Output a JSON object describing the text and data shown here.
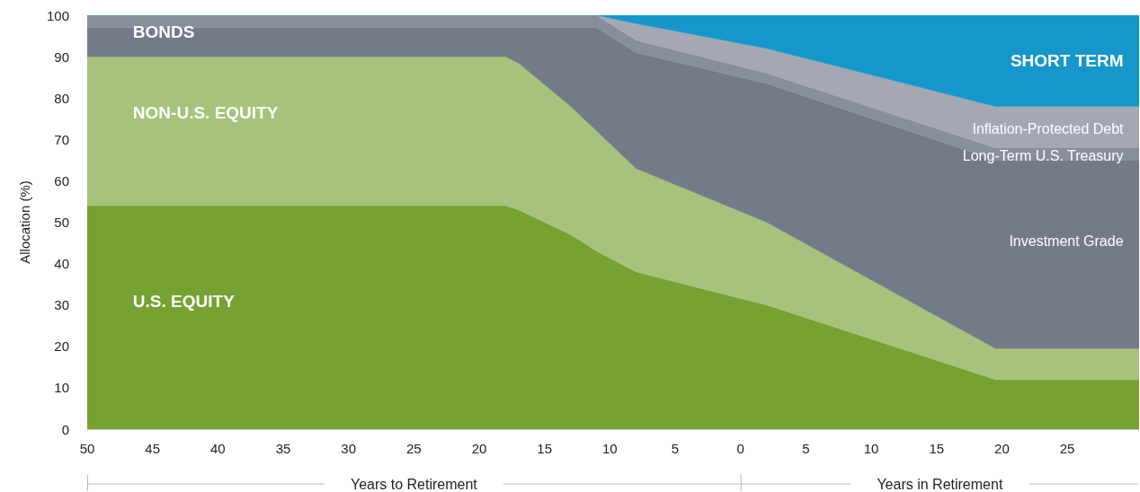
{
  "chart_data": {
    "type": "area",
    "stacked": true,
    "ylabel": "Allocation (%)",
    "x": [
      -50,
      -18,
      -17,
      -13,
      -11,
      -8,
      2,
      19.5,
      30.5
    ],
    "xlim": [
      -50,
      30.5
    ],
    "xticks": [
      {
        "value": -50,
        "label": "50"
      },
      {
        "value": -45,
        "label": "45"
      },
      {
        "value": -40,
        "label": "40"
      },
      {
        "value": -35,
        "label": "35"
      },
      {
        "value": -30,
        "label": "30"
      },
      {
        "value": -25,
        "label": "25"
      },
      {
        "value": -20,
        "label": "20"
      },
      {
        "value": -15,
        "label": "15"
      },
      {
        "value": -10,
        "label": "10"
      },
      {
        "value": -5,
        "label": "5"
      },
      0,
      5,
      10,
      15,
      20,
      25
    ],
    "ylim": [
      0,
      100
    ],
    "yticks": [
      0,
      10,
      20,
      30,
      40,
      50,
      60,
      70,
      80,
      90,
      100
    ],
    "legend": false,
    "series": [
      {
        "name": "U.S. EQUITY",
        "color": "#76a232",
        "values": [
          54,
          54,
          53,
          47,
          43,
          38,
          30,
          12,
          12
        ]
      },
      {
        "name": "NON-U.S. EQUITY",
        "color": "#a7c27c",
        "values": [
          36,
          36,
          35.5,
          31,
          29,
          25,
          20,
          7.5,
          7.5
        ]
      },
      {
        "name": "Investment Grade",
        "color": "#747a88",
        "values": [
          7,
          7,
          8.5,
          19,
          25,
          28,
          33.5,
          45.5,
          45.5
        ]
      },
      {
        "name": "Long-Term U.S. Treasury",
        "color": "#898e9b",
        "values": [
          3,
          3,
          3,
          3,
          3,
          3,
          2.5,
          3,
          3
        ]
      },
      {
        "name": "Inflation-Protected Debt",
        "color": "#a5a8b3",
        "values": [
          0,
          0,
          0,
          0,
          0,
          4,
          6,
          10,
          10
        ]
      },
      {
        "name": "SHORT TERM",
        "color": "#1597cb",
        "values": [
          0,
          0,
          0,
          0,
          0,
          2,
          8,
          22,
          22
        ]
      }
    ],
    "annotations": [
      "BONDS",
      "Years to Retirement",
      "Years in Retirement"
    ]
  }
}
